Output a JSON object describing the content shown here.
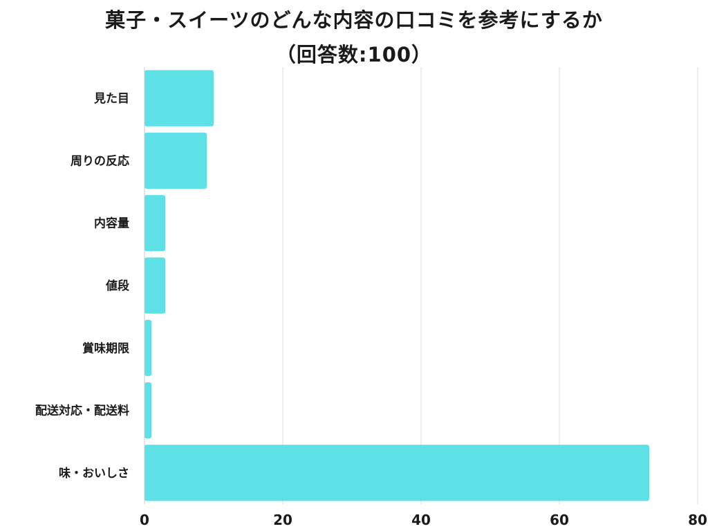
{
  "chart_data": {
    "type": "bar",
    "orientation": "horizontal",
    "title": "菓子・スイーツのどんな内容の口コミを参考にするか",
    "subtitle": "（回答数:100）",
    "categories": [
      "見た目",
      "周りの反応",
      "内容量",
      "値段",
      "賞味期限",
      "配送対応・配送料",
      "味・おいしさ"
    ],
    "values": [
      10,
      9,
      3,
      3,
      1,
      1,
      73
    ],
    "xlim": [
      0,
      80
    ],
    "xticks": [
      0,
      20,
      40,
      60,
      80
    ],
    "grid": true,
    "bar_color": "#5ee1e6",
    "grid_color": "#dcdcdc"
  }
}
